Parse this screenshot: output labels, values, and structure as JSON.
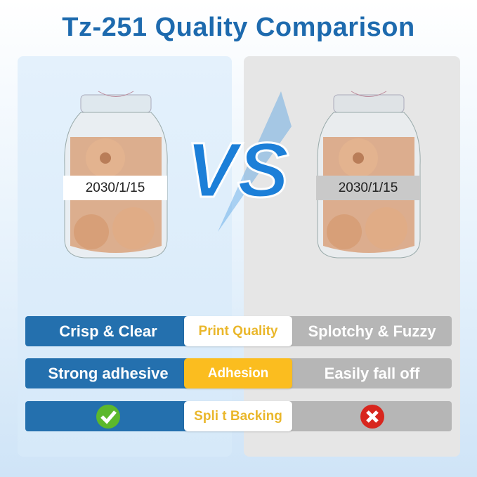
{
  "title": "Tz-251 Quality Comparison",
  "left_label": "2030/1/15",
  "right_label": "2030/1/15",
  "vs": "VS",
  "rows": [
    {
      "left": "Crisp & Clear",
      "center": "Print Quality",
      "right": "Splotchy & Fuzzy"
    },
    {
      "left": "Strong adhesive",
      "center": "Adhesion",
      "right": "Easily fall off"
    },
    {
      "left": "check-icon",
      "center": "Spli t Backing",
      "right": "x-icon"
    }
  ],
  "colors": {
    "brand": "#1d6aae",
    "blue_bar": "#2470ae",
    "gray_bar": "#b6b6b6",
    "accent": "#fbbd1f"
  }
}
